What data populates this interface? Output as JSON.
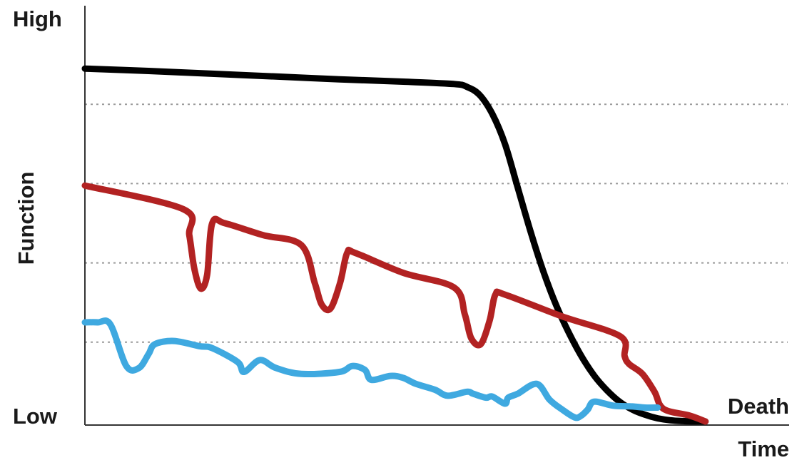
{
  "chart_data": {
    "type": "line",
    "title": "",
    "xlabel": "Time",
    "ylabel": "Function",
    "y_high_label": "High",
    "y_low_label": "Low",
    "end_label": "Death",
    "xlim": [
      0,
      100
    ],
    "ylim": [
      0,
      100
    ],
    "grid": {
      "y": true,
      "style": "dotted",
      "values": [
        20,
        40,
        60,
        80
      ]
    },
    "series": [
      {
        "color": "#000000",
        "x": [
          0,
          10,
          20,
          30,
          40,
          50,
          58,
          60,
          62,
          64,
          66,
          68,
          70,
          72,
          74,
          76,
          78,
          80,
          82,
          84,
          86,
          88,
          90,
          92,
          94,
          95.5,
          97.5
        ],
        "y": [
          89,
          88.4,
          87.7,
          87,
          86.3,
          85.7,
          85.1,
          84.4,
          82.4,
          77.6,
          70,
          59,
          48,
          38,
          29.5,
          22.5,
          16.5,
          11.6,
          7.9,
          5,
          3,
          1.7,
          0.8,
          0.3,
          0.1,
          0,
          0
        ]
      },
      {
        "color": "#b22222",
        "x": [
          0,
          15.5,
          16.4,
          17.2,
          18.2,
          19.2,
          20,
          22,
          28,
          34,
          36.1,
          37.2,
          38.6,
          40.1,
          41.2,
          42.5,
          50,
          58,
          59.7,
          60.7,
          62.2,
          63.6,
          64.5,
          66,
          75,
          84.1,
          84.8,
          85.5,
          87.6,
          89.5,
          90.9,
          95,
          97.5
        ],
        "y": [
          59.5,
          53.5,
          47,
          38.5,
          33.5,
          37,
          50,
          50,
          47,
          44.5,
          35,
          29.5,
          28.5,
          35,
          42.5,
          42.5,
          37.5,
          33.8,
          27,
          21,
          19.5,
          25.5,
          32,
          32,
          26.5,
          21.5,
          16.5,
          14.5,
          12,
          7.5,
          3.2,
          1.5,
          0
        ]
      },
      {
        "color": "#3fa9e0",
        "x": [
          0,
          2,
          4,
          6.5,
          8.5,
          10,
          11,
          14,
          18,
          20,
          24,
          25,
          27.5,
          30,
          34,
          40,
          42,
          44,
          45,
          48,
          50,
          52,
          55,
          57,
          60,
          61,
          63,
          64,
          66,
          66.5,
          68,
          71,
          73,
          75,
          77,
          78,
          79,
          80,
          83,
          86,
          88,
          90
        ],
        "y": [
          25,
          25,
          24.5,
          14,
          13.5,
          17,
          19.5,
          20.3,
          19,
          18.5,
          15,
          12.5,
          15.5,
          13.5,
          12,
          12.5,
          14,
          13,
          10.5,
          11.5,
          11,
          9.5,
          8,
          6.5,
          7.5,
          7,
          6,
          6.3,
          4.5,
          6,
          7,
          9.5,
          5.5,
          3,
          1,
          1.5,
          3,
          5,
          4,
          3.8,
          3.5,
          3.5
        ]
      }
    ]
  }
}
